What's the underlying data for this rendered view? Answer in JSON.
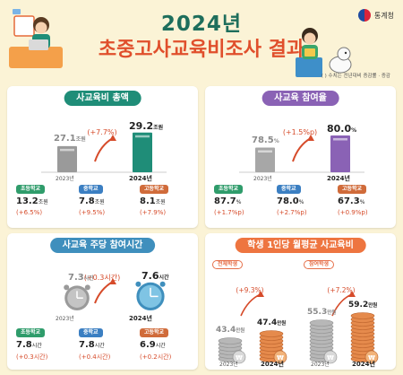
{
  "header": {
    "year_title": "2024년",
    "survey_title": "초중고사교육비조사 결과",
    "agency": "통계청",
    "note": "( ) 수치는 전년대비 증감률 · 증감"
  },
  "cards": {
    "total_cost": {
      "title": "사교육비 총액",
      "change": "(+7.7%)",
      "year_prev": "2023년",
      "year_curr": "2024년",
      "value_prev": "27.1",
      "value_curr": "29.2",
      "unit": "조원",
      "chart_data": {
        "type": "bar",
        "categories": [
          "2023년",
          "2024년"
        ],
        "values": [
          27.1,
          29.2
        ],
        "unit": "조원"
      },
      "schools": [
        {
          "label": "초등학교",
          "value": "13.2",
          "unit": "조원",
          "change": "(+6.5%)"
        },
        {
          "label": "중학교",
          "value": "7.8",
          "unit": "조원",
          "change": "(+9.5%)"
        },
        {
          "label": "고등학교",
          "value": "8.1",
          "unit": "조원",
          "change": "(+7.9%)"
        }
      ]
    },
    "participation": {
      "title": "사교육 참여율",
      "change": "(+1.5%p)",
      "year_prev": "2023년",
      "year_curr": "2024년",
      "value_prev": "78.5",
      "value_curr": "80.0",
      "unit": "%",
      "chart_data": {
        "type": "bar",
        "categories": [
          "2023년",
          "2024년"
        ],
        "values": [
          78.5,
          80.0
        ],
        "unit": "%"
      },
      "schools": [
        {
          "label": "초등학교",
          "value": "87.7",
          "unit": "%",
          "change": "(+1.7%p)"
        },
        {
          "label": "중학교",
          "value": "78.0",
          "unit": "%",
          "change": "(+2.7%p)"
        },
        {
          "label": "고등학교",
          "value": "67.3",
          "unit": "%",
          "change": "(+0.9%p)"
        }
      ]
    },
    "weekly_hours": {
      "title": "사교육 주당 참여시간",
      "change": "(+0.3시간)",
      "year_prev": "2023년",
      "year_curr": "2024년",
      "value_prev": "7.3",
      "value_curr": "7.6",
      "unit": "시간",
      "chart_data": {
        "type": "bar",
        "categories": [
          "2023년",
          "2024년"
        ],
        "values": [
          7.3,
          7.6
        ],
        "unit": "시간"
      },
      "schools": [
        {
          "label": "초등학교",
          "value": "7.8",
          "unit": "시간",
          "change": "(+0.3시간)"
        },
        {
          "label": "중학교",
          "value": "7.8",
          "unit": "시간",
          "change": "(+0.4시간)"
        },
        {
          "label": "고등학교",
          "value": "6.9",
          "unit": "시간",
          "change": "(+0.2시간)"
        }
      ]
    },
    "monthly_cost": {
      "title": "학생 1인당 월평균 사교육비",
      "all": {
        "label": "전체학생",
        "change": "(+9.3%)",
        "value_prev": "43.4",
        "value_curr": "47.4",
        "unit": "만원",
        "year_prev": "2023년",
        "year_curr": "2024년",
        "chart_data": {
          "type": "bar",
          "categories": [
            "2023년",
            "2024년"
          ],
          "values": [
            43.4,
            47.4
          ],
          "unit": "만원"
        }
      },
      "participants": {
        "label": "참여학생",
        "change": "(+7.2%)",
        "value_prev": "55.3",
        "value_curr": "59.2",
        "unit": "만원",
        "year_prev": "2023년",
        "year_curr": "2024년",
        "chart_data": {
          "type": "bar",
          "categories": [
            "2023년",
            "2024년"
          ],
          "values": [
            55.3,
            59.2
          ],
          "unit": "만원"
        }
      },
      "coin_symbol": "₩"
    }
  }
}
